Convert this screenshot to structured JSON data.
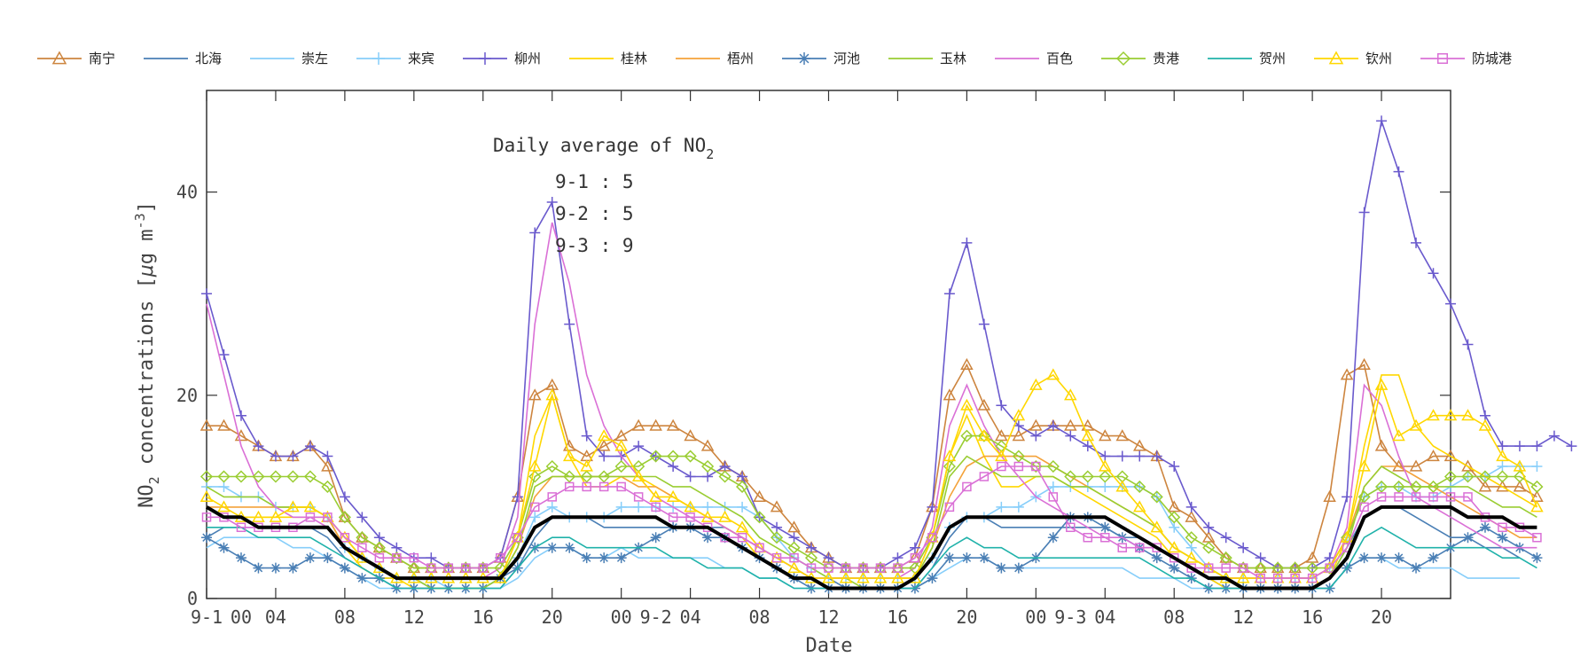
{
  "chart_data": {
    "type": "line",
    "ylabel": "NO₂ concentrations [μg m⁻³]",
    "ylabel_main": "NO",
    "ylabel_sub": "2",
    "ylabel_rest": " concentrations [",
    "ylabel_mu": "μ",
    "ylabel_unit": "g m",
    "ylabel_sup": "-3",
    "ylabel_end": "]",
    "xlabel": "Date",
    "ylim": [
      0,
      50
    ],
    "xlim": [
      0,
      72
    ],
    "yticks": [
      0,
      20,
      40
    ],
    "xticks": [
      {
        "x": 0,
        "label": "9-1"
      },
      {
        "x": 4,
        "label": "04"
      },
      {
        "x": 8,
        "label": "08"
      },
      {
        "x": 12,
        "label": "12"
      },
      {
        "x": 16,
        "label": "16"
      },
      {
        "x": 20,
        "label": "20"
      },
      {
        "x": 24,
        "label": "00"
      },
      {
        "x": 28,
        "label": "04"
      },
      {
        "x": 32,
        "label": "08"
      },
      {
        "x": 36,
        "label": "12"
      },
      {
        "x": 40,
        "label": "16"
      },
      {
        "x": 44,
        "label": "20"
      },
      {
        "x": 48,
        "label": "00"
      },
      {
        "x": 52,
        "label": "04"
      },
      {
        "x": 56,
        "label": "08"
      },
      {
        "x": 60,
        "label": "12"
      },
      {
        "x": 64,
        "label": "16"
      },
      {
        "x": 68,
        "label": "20"
      }
    ],
    "extra_labels": [
      {
        "x": 2,
        "label": "00"
      },
      {
        "x": 26,
        "label": "9-2"
      },
      {
        "x": 50,
        "label": "9-3"
      }
    ],
    "annotation": {
      "title_main": "Daily average of NO",
      "title_sub": "2",
      "lines": [
        "9-1 : 5",
        "9-2 : 5",
        "9-3 : 9"
      ]
    },
    "grid": false,
    "legend_position": "top",
    "series": [
      {
        "name": "南宁",
        "color": "#cd853f",
        "marker": "triangle",
        "values": [
          17,
          17,
          16,
          15,
          14,
          14,
          15,
          13,
          8,
          6,
          5,
          4,
          3,
          3,
          3,
          3,
          3,
          4,
          10,
          20,
          21,
          15,
          14,
          15,
          16,
          17,
          17,
          17,
          16,
          15,
          13,
          12,
          10,
          9,
          7,
          5,
          4,
          3,
          3,
          3,
          3,
          4,
          9,
          20,
          23,
          19,
          16,
          16,
          17,
          17,
          17,
          17,
          16,
          16,
          15,
          14,
          9,
          8,
          6,
          4,
          3,
          3,
          3,
          3,
          4,
          10,
          22,
          23,
          15,
          13,
          13,
          14,
          14,
          13,
          11,
          11,
          11,
          10
        ]
      },
      {
        "name": "北海",
        "color": "#4a7fb5",
        "marker": "none",
        "values": [
          6,
          7,
          7,
          7,
          7,
          7,
          7,
          6,
          4,
          3,
          2,
          2,
          2,
          1,
          1,
          1,
          1,
          1,
          3,
          6,
          8,
          8,
          8,
          7,
          7,
          7,
          7,
          7,
          7,
          7,
          7,
          6,
          5,
          4,
          3,
          2,
          2,
          1,
          1,
          1,
          1,
          1,
          3,
          6,
          8,
          8,
          7,
          7,
          7,
          7,
          7,
          7,
          7,
          6,
          6,
          5,
          4,
          3,
          2,
          1,
          1,
          1,
          1,
          1,
          1,
          2,
          5,
          8,
          9,
          9,
          8,
          7,
          6,
          6,
          5,
          5,
          4
        ]
      },
      {
        "name": "崇左",
        "color": "#87cefa",
        "marker": "none",
        "values": [
          5,
          6,
          6,
          6,
          6,
          5,
          5,
          4,
          3,
          2,
          1,
          1,
          1,
          1,
          1,
          1,
          1,
          1,
          2,
          4,
          5,
          5,
          4,
          4,
          5,
          4,
          4,
          4,
          4,
          4,
          3,
          3,
          2,
          2,
          1,
          1,
          1,
          1,
          1,
          1,
          1,
          1,
          2,
          3,
          4,
          4,
          3,
          3,
          3,
          3,
          3,
          3,
          3,
          3,
          2,
          2,
          2,
          1,
          1,
          1,
          1,
          1,
          1,
          1,
          1,
          1,
          3,
          4,
          4,
          3,
          3,
          3,
          3,
          2,
          2,
          2,
          2
        ]
      },
      {
        "name": "来宾",
        "color": "#87cefa",
        "marker": "plus",
        "values": [
          11,
          11,
          10,
          10,
          9,
          9,
          9,
          8,
          5,
          4,
          3,
          2,
          2,
          2,
          1,
          1,
          1,
          2,
          4,
          8,
          9,
          8,
          8,
          8,
          9,
          9,
          9,
          9,
          9,
          9,
          9,
          9,
          8,
          6,
          4,
          3,
          2,
          2,
          2,
          2,
          2,
          2,
          4,
          7,
          8,
          8,
          9,
          9,
          10,
          11,
          11,
          11,
          11,
          11,
          11,
          10,
          7,
          5,
          3,
          2,
          2,
          2,
          2,
          2,
          2,
          3,
          6,
          10,
          11,
          11,
          10,
          10,
          11,
          12,
          12,
          13,
          13,
          13
        ]
      },
      {
        "name": "柳州",
        "color": "#6a5acd",
        "marker": "plus",
        "values": [
          30,
          24,
          18,
          15,
          14,
          14,
          15,
          14,
          10,
          8,
          6,
          5,
          4,
          4,
          3,
          3,
          3,
          4,
          10,
          36,
          39,
          27,
          16,
          14,
          14,
          15,
          14,
          13,
          12,
          12,
          13,
          12,
          8,
          7,
          6,
          5,
          4,
          3,
          3,
          3,
          4,
          5,
          9,
          30,
          35,
          27,
          19,
          17,
          16,
          17,
          16,
          15,
          14,
          14,
          14,
          14,
          13,
          9,
          7,
          6,
          5,
          4,
          3,
          3,
          3,
          4,
          10,
          38,
          47,
          42,
          35,
          32,
          29,
          25,
          18,
          15,
          15,
          15,
          16,
          15
        ]
      },
      {
        "name": "桂林",
        "color": "#ffd700",
        "marker": "none",
        "values": [
          9,
          8,
          8,
          8,
          8,
          8,
          8,
          8,
          5,
          3,
          2,
          2,
          1,
          1,
          1,
          1,
          1,
          2,
          6,
          16,
          20,
          14,
          11,
          11,
          12,
          12,
          11,
          10,
          9,
          8,
          7,
          6,
          4,
          3,
          2,
          2,
          1,
          1,
          1,
          1,
          1,
          2,
          6,
          14,
          18,
          14,
          11,
          11,
          12,
          12,
          11,
          10,
          9,
          8,
          7,
          6,
          4,
          3,
          2,
          1,
          1,
          1,
          1,
          1,
          1,
          2,
          6,
          15,
          22,
          22,
          17,
          15,
          14,
          13,
          12,
          11,
          10,
          9
        ]
      },
      {
        "name": "梧州",
        "color": "#f4a23a",
        "marker": "none",
        "values": [
          9,
          9,
          9,
          9,
          9,
          9,
          9,
          8,
          5,
          4,
          3,
          2,
          2,
          2,
          2,
          2,
          2,
          2,
          5,
          10,
          12,
          12,
          12,
          12,
          12,
          11,
          11,
          10,
          9,
          8,
          7,
          6,
          5,
          4,
          3,
          2,
          2,
          2,
          2,
          2,
          2,
          2,
          5,
          10,
          13,
          14,
          14,
          14,
          14,
          13,
          12,
          11,
          10,
          9,
          8,
          7,
          5,
          4,
          3,
          2,
          2,
          2,
          2,
          2,
          2,
          3,
          6,
          11,
          13,
          13,
          12,
          11,
          10,
          9,
          8,
          7,
          6,
          6
        ]
      },
      {
        "name": "河池",
        "color": "#4a7fb5",
        "marker": "star",
        "values": [
          6,
          5,
          4,
          3,
          3,
          3,
          4,
          4,
          3,
          2,
          2,
          1,
          1,
          1,
          1,
          1,
          1,
          2,
          3,
          5,
          5,
          5,
          4,
          4,
          4,
          5,
          6,
          7,
          7,
          6,
          6,
          5,
          4,
          3,
          2,
          1,
          1,
          1,
          1,
          1,
          1,
          1,
          2,
          4,
          4,
          4,
          3,
          3,
          4,
          6,
          8,
          8,
          7,
          6,
          5,
          4,
          3,
          2,
          1,
          1,
          1,
          1,
          1,
          1,
          1,
          1,
          3,
          4,
          4,
          4,
          3,
          4,
          5,
          6,
          7,
          6,
          5,
          4
        ]
      },
      {
        "name": "玉林",
        "color": "#9acd32",
        "marker": "none",
        "values": [
          11,
          10,
          10,
          10,
          9,
          9,
          9,
          8,
          6,
          4,
          3,
          2,
          2,
          1,
          1,
          1,
          1,
          2,
          5,
          11,
          12,
          12,
          12,
          12,
          12,
          12,
          12,
          11,
          11,
          10,
          9,
          8,
          6,
          5,
          4,
          3,
          2,
          2,
          1,
          1,
          1,
          2,
          5,
          12,
          14,
          13,
          12,
          12,
          12,
          12,
          11,
          11,
          10,
          9,
          8,
          7,
          5,
          4,
          3,
          2,
          1,
          1,
          1,
          1,
          1,
          2,
          5,
          11,
          13,
          12,
          11,
          11,
          11,
          11,
          10,
          9,
          9,
          8
        ]
      },
      {
        "name": "百色",
        "color": "#da70d6",
        "marker": "none",
        "values": [
          29,
          22,
          15,
          11,
          9,
          8,
          8,
          7,
          5,
          4,
          3,
          2,
          2,
          2,
          2,
          2,
          2,
          3,
          8,
          27,
          37,
          31,
          22,
          17,
          14,
          12,
          10,
          9,
          8,
          8,
          7,
          6,
          5,
          4,
          3,
          2,
          2,
          2,
          2,
          2,
          2,
          3,
          7,
          17,
          21,
          17,
          14,
          12,
          10,
          9,
          8,
          7,
          6,
          6,
          5,
          5,
          4,
          3,
          2,
          2,
          2,
          2,
          2,
          2,
          2,
          3,
          7,
          21,
          19,
          14,
          10,
          9,
          8,
          7,
          6,
          5,
          5,
          5
        ]
      },
      {
        "name": "贵港",
        "color": "#9acd32",
        "marker": "diamond",
        "values": [
          12,
          12,
          12,
          12,
          12,
          12,
          12,
          11,
          8,
          6,
          5,
          4,
          3,
          3,
          3,
          3,
          3,
          3,
          6,
          12,
          13,
          12,
          12,
          12,
          13,
          13,
          14,
          14,
          14,
          13,
          12,
          11,
          8,
          6,
          5,
          4,
          3,
          3,
          3,
          3,
          3,
          3,
          6,
          13,
          16,
          16,
          15,
          14,
          13,
          13,
          12,
          12,
          12,
          12,
          11,
          10,
          8,
          6,
          5,
          4,
          3,
          3,
          3,
          3,
          3,
          3,
          6,
          10,
          11,
          11,
          11,
          11,
          12,
          12,
          12,
          12,
          12,
          11
        ]
      },
      {
        "name": "贺州",
        "color": "#20b2aa",
        "marker": "none",
        "values": [
          7,
          7,
          7,
          6,
          6,
          6,
          6,
          5,
          4,
          3,
          2,
          1,
          1,
          1,
          1,
          1,
          1,
          1,
          3,
          5,
          6,
          6,
          5,
          5,
          5,
          5,
          5,
          4,
          4,
          3,
          3,
          3,
          2,
          2,
          1,
          1,
          1,
          1,
          1,
          1,
          1,
          1,
          3,
          5,
          6,
          5,
          5,
          4,
          4,
          4,
          4,
          4,
          4,
          4,
          4,
          3,
          2,
          2,
          1,
          1,
          1,
          1,
          1,
          1,
          1,
          1,
          3,
          6,
          7,
          6,
          5,
          5,
          5,
          5,
          5,
          4,
          4,
          3
        ]
      },
      {
        "name": "钦州",
        "color": "#ffd700",
        "marker": "triangle",
        "values": [
          10,
          9,
          8,
          8,
          8,
          9,
          9,
          8,
          6,
          4,
          3,
          2,
          2,
          2,
          2,
          2,
          2,
          2,
          6,
          13,
          20,
          14,
          13,
          16,
          15,
          12,
          10,
          10,
          9,
          8,
          8,
          7,
          5,
          4,
          3,
          2,
          2,
          2,
          2,
          2,
          2,
          2,
          6,
          14,
          19,
          16,
          14,
          18,
          21,
          22,
          20,
          16,
          13,
          11,
          9,
          7,
          5,
          4,
          3,
          2,
          2,
          2,
          2,
          2,
          2,
          3,
          6,
          13,
          21,
          16,
          17,
          18,
          18,
          18,
          17,
          14,
          13,
          9
        ]
      },
      {
        "name": "防城港",
        "color": "#da70d6",
        "marker": "square",
        "values": [
          8,
          8,
          7,
          7,
          7,
          7,
          8,
          8,
          6,
          5,
          4,
          4,
          4,
          3,
          3,
          3,
          3,
          4,
          6,
          9,
          10,
          11,
          11,
          11,
          11,
          10,
          9,
          8,
          8,
          7,
          6,
          6,
          5,
          4,
          4,
          3,
          3,
          3,
          3,
          3,
          3,
          4,
          6,
          9,
          11,
          12,
          13,
          13,
          13,
          10,
          7,
          6,
          6,
          5,
          5,
          5,
          4,
          3,
          3,
          3,
          3,
          2,
          2,
          2,
          2,
          3,
          5,
          9,
          10,
          10,
          10,
          10,
          10,
          10,
          8,
          7,
          7,
          6
        ]
      },
      {
        "name": "",
        "color": "#000000",
        "marker": "none",
        "bold": true,
        "values": [
          9,
          8,
          8,
          7,
          7,
          7,
          7,
          7,
          5,
          4,
          3,
          2,
          2,
          2,
          2,
          2,
          2,
          2,
          4,
          7,
          8,
          8,
          8,
          8,
          8,
          8,
          8,
          7,
          7,
          7,
          6,
          5,
          4,
          3,
          2,
          2,
          1,
          1,
          1,
          1,
          1,
          2,
          4,
          7,
          8,
          8,
          8,
          8,
          8,
          8,
          8,
          8,
          8,
          7,
          6,
          5,
          4,
          3,
          2,
          2,
          1,
          1,
          1,
          1,
          1,
          2,
          4,
          8,
          9,
          9,
          9,
          9,
          9,
          8,
          8,
          8,
          7,
          7
        ]
      }
    ]
  }
}
